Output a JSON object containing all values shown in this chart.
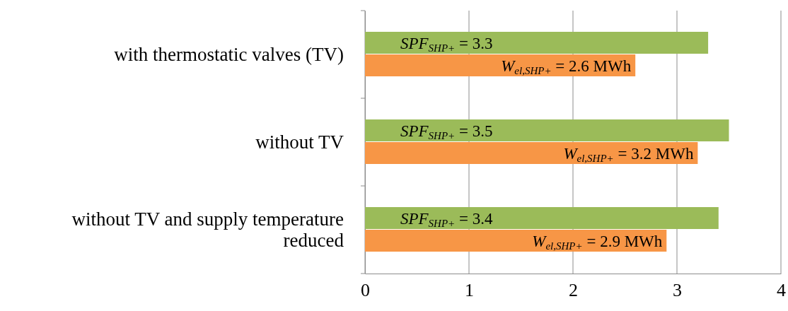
{
  "chart_data": {
    "type": "bar",
    "orientation": "horizontal",
    "categories": [
      "with thermostatic valves (TV)",
      "without TV",
      "without TV and supply temperature reduced"
    ],
    "series": [
      {
        "color": "#9bbb59",
        "values": [
          3.3,
          3.5,
          3.4
        ],
        "value_labels": [
          "SPF$_{SHP+}$ = 3.3",
          "SPF$_{SHP+}$ =  3.5",
          "SPF$_{SHP+}$ = 3.4"
        ]
      },
      {
        "color": "#f79646",
        "values": [
          2.6,
          3.2,
          2.9
        ],
        "value_labels": [
          "W$_{el,SHP+}$ = 2.6 MWh",
          "W$_{el,SHP+}$ = 3.2 MWh",
          "W$_{el,SHP+}$ = 2.9 MWh"
        ]
      }
    ],
    "xlim": [
      0,
      4
    ],
    "xticks": [
      0,
      1,
      2,
      3,
      4
    ],
    "grid": "x"
  }
}
